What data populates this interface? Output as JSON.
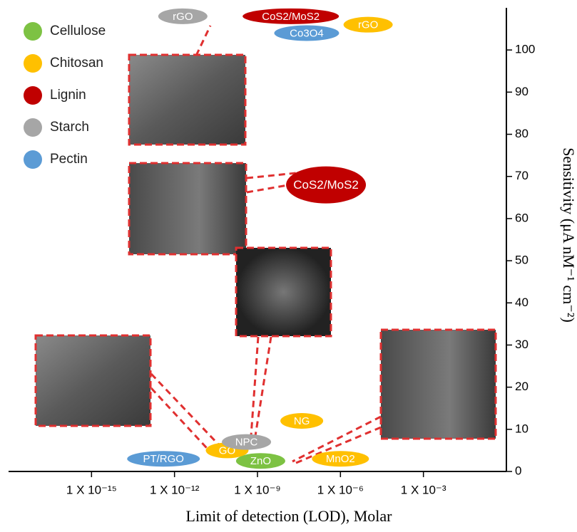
{
  "chart_data": {
    "type": "scatter",
    "x_label": "Limit of detection (LOD), Molar",
    "y_label": "Sensitivity (μA nM⁻¹ cm⁻²)",
    "x_log": true,
    "xlim": [
      1e-18,
      1
    ],
    "ylim": [
      0,
      110
    ],
    "xticks": [
      {
        "value": 1e-15,
        "label": "1 X 10⁻¹⁵"
      },
      {
        "value": 1e-12,
        "label": "1 X 10⁻¹²"
      },
      {
        "value": 1e-09,
        "label": "1 X 10⁻⁹"
      },
      {
        "value": 1e-06,
        "label": "1 X 10⁻⁶"
      },
      {
        "value": 0.001,
        "label": "1 X 10⁻³"
      }
    ],
    "yticks": [
      0,
      10,
      20,
      30,
      40,
      50,
      60,
      70,
      80,
      90,
      100
    ],
    "legend": "top-left",
    "series": [
      {
        "name": "Cellulose",
        "color": "#7dc243",
        "x": [
          1.3e-09
        ],
        "values": [
          2.5
        ],
        "labels": [
          "ZnO"
        ]
      },
      {
        "name": "Chitosan",
        "color": "#ffc000",
        "x": [
          1e-05,
          4e-08,
          8e-11,
          1e-06
        ],
        "values": [
          106,
          12,
          5,
          3
        ],
        "labels": [
          "rGO",
          "NG",
          "GO",
          "MnO2"
        ]
      },
      {
        "name": "Lignin",
        "color": "#c00000",
        "x": [
          1.6e-08,
          3e-07
        ],
        "values": [
          108,
          68
        ],
        "labels": [
          "CoS2/MoS2",
          "CoS2/MoS2"
        ]
      },
      {
        "name": "Starch",
        "color": "#a6a6a6",
        "x": [
          2e-12,
          4e-10
        ],
        "values": [
          108,
          7
        ],
        "labels": [
          "rGO",
          "NPC"
        ]
      },
      {
        "name": "Pectin",
        "color": "#5b9bd5",
        "x": [
          6e-08,
          4e-13
        ],
        "values": [
          104,
          3
        ],
        "labels": [
          "Co3O4",
          "PT/RGO"
        ]
      }
    ]
  }
}
